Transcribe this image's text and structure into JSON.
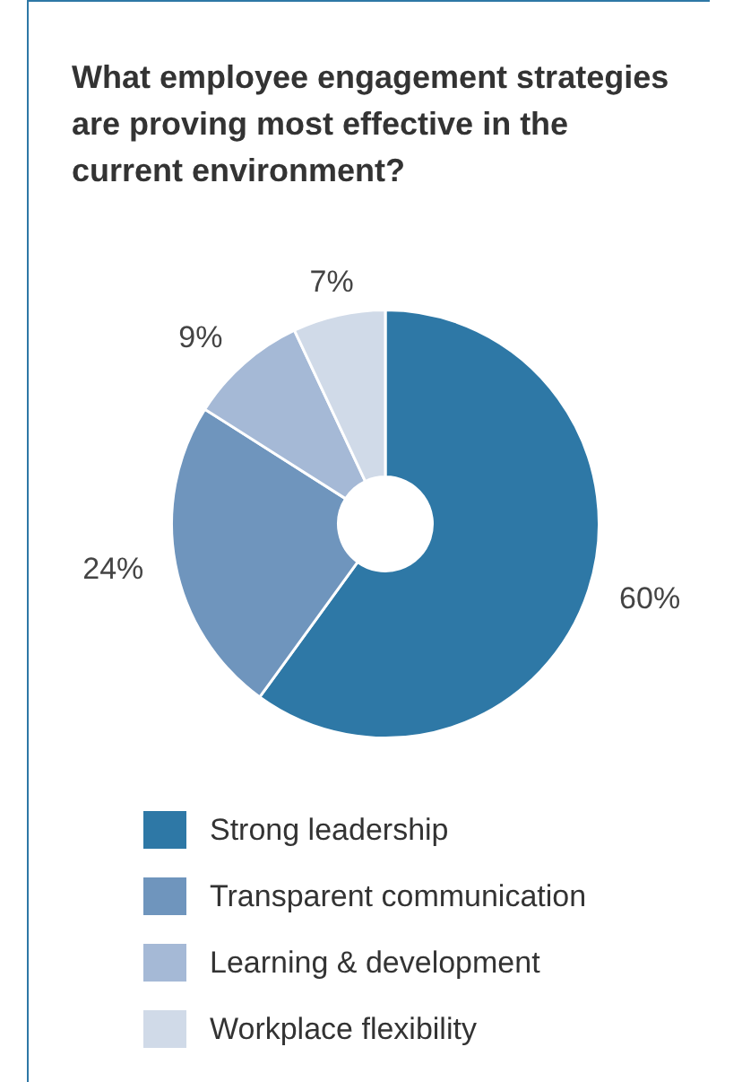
{
  "chart_data": {
    "type": "donut",
    "title": "What employee engagement strategies are proving most effective in the current environment?",
    "categories": [
      "Strong leadership",
      "Transparent communication",
      "Learning & development",
      "Workplace flexibility"
    ],
    "values": [
      60,
      24,
      9,
      7
    ],
    "colors": [
      "#2e78a6",
      "#6f95bd",
      "#a5b9d6",
      "#d0dae8"
    ],
    "value_labels": [
      "60%",
      "24%",
      "9%",
      "7%"
    ],
    "legend": "bottom"
  }
}
